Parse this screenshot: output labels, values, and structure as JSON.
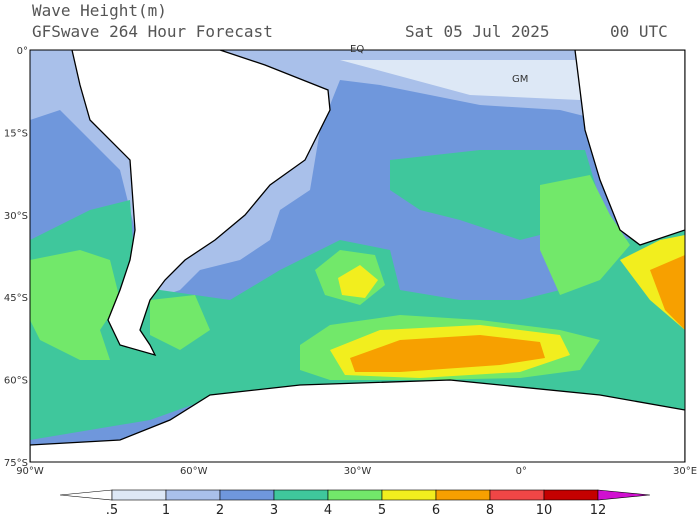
{
  "header": {
    "title": "Wave Height(m)",
    "subtitle": "GFSwave 264 Hour Forecast",
    "date": "Sat 05 Jul 2025",
    "time": "00 UTC"
  },
  "map": {
    "lat_labels": [
      "0°",
      "15°S",
      "30°S",
      "45°S",
      "60°S",
      "75°S"
    ],
    "lon_labels": [
      "90°W",
      "60°W",
      "30°W",
      "0°",
      "30°E"
    ],
    "annotations": [
      "EQ",
      "GM"
    ]
  },
  "colorbar": {
    "levels": [
      {
        "value": 0.5,
        "label": ".5"
      },
      1,
      2,
      3,
      4,
      5,
      6,
      8,
      10,
      12
    ],
    "colors": [
      "#ffffff",
      "#dde8f6",
      "#a9c0ea",
      "#6f97dc",
      "#3fc79c",
      "#72e86a",
      "#f2ee1e",
      "#f7a000",
      "#f04646",
      "#c40000",
      "#d010d0"
    ]
  }
}
